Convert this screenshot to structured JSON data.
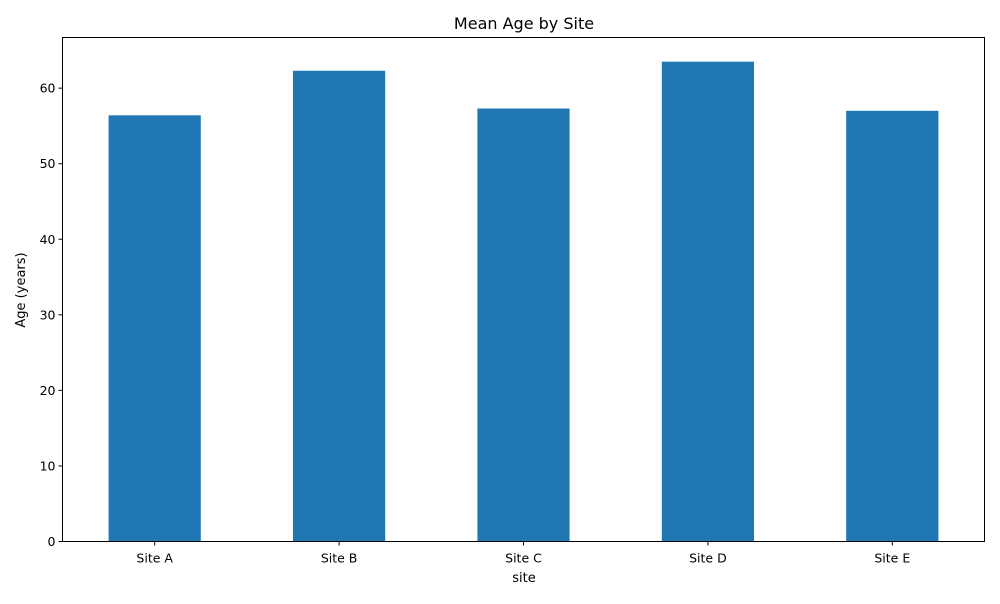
{
  "chart_data": {
    "type": "bar",
    "title": "Mean Age by Site",
    "xlabel": "site",
    "ylabel": "Age (years)",
    "categories": [
      "Site A",
      "Site B",
      "Site C",
      "Site D",
      "Site E"
    ],
    "values": [
      56.4,
      62.3,
      57.3,
      63.5,
      57.0
    ],
    "ylim": [
      0,
      66.7
    ],
    "yticks": [
      0,
      10,
      20,
      30,
      40,
      50,
      60
    ],
    "bar_color": "#1f77b4",
    "grid": false,
    "legend": "none"
  }
}
